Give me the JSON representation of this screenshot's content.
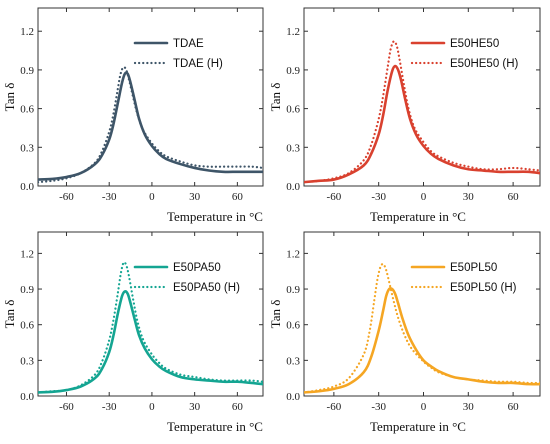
{
  "chart_data": [
    {
      "type": "line",
      "xlabel": "Temperature in °C",
      "ylabel": "Tan δ",
      "xlim": [
        -80,
        78
      ],
      "ylim": [
        0,
        1.38
      ],
      "xticks": [
        -60,
        -30,
        0,
        30,
        60
      ],
      "yticks": [
        0.0,
        0.3,
        0.6,
        0.9,
        1.2
      ],
      "xtick_labels": [
        "-60",
        "-30",
        "0",
        "30",
        "60"
      ],
      "ytick_labels": [
        "0.0",
        "0.3",
        "0.6",
        "0.9",
        "1.2"
      ],
      "legend_position": "top-right",
      "color": "#3e5568",
      "series": [
        {
          "name": "TDAE",
          "style": "solid",
          "x": [
            -80,
            -70,
            -60,
            -50,
            -40,
            -35,
            -30,
            -27,
            -24,
            -21,
            -19,
            -17,
            -15,
            -12,
            -9,
            -5,
            0,
            5,
            10,
            20,
            30,
            40,
            50,
            60,
            70,
            78
          ],
          "y": [
            0.05,
            0.055,
            0.07,
            0.1,
            0.17,
            0.24,
            0.36,
            0.48,
            0.64,
            0.8,
            0.87,
            0.87,
            0.8,
            0.66,
            0.52,
            0.4,
            0.31,
            0.25,
            0.21,
            0.17,
            0.14,
            0.12,
            0.11,
            0.11,
            0.11,
            0.11
          ]
        },
        {
          "name": "TDAE (H)",
          "style": "dotted",
          "x": [
            -80,
            -70,
            -60,
            -50,
            -40,
            -35,
            -30,
            -27,
            -24,
            -22,
            -20,
            -18,
            -16,
            -13,
            -10,
            -6,
            0,
            5,
            10,
            20,
            30,
            40,
            50,
            60,
            70,
            78
          ],
          "y": [
            0.03,
            0.04,
            0.06,
            0.1,
            0.18,
            0.27,
            0.42,
            0.56,
            0.75,
            0.87,
            0.92,
            0.9,
            0.82,
            0.68,
            0.55,
            0.43,
            0.33,
            0.27,
            0.23,
            0.19,
            0.16,
            0.15,
            0.15,
            0.15,
            0.15,
            0.14
          ]
        }
      ]
    },
    {
      "type": "line",
      "xlabel": "Temperature in °C",
      "ylabel": "Tan δ",
      "xlim": [
        -80,
        78
      ],
      "ylim": [
        0,
        1.38
      ],
      "xticks": [
        -60,
        -30,
        0,
        30,
        60
      ],
      "yticks": [
        0.0,
        0.3,
        0.6,
        0.9,
        1.2
      ],
      "xtick_labels": [
        "-60",
        "-30",
        "0",
        "30",
        "60"
      ],
      "ytick_labels": [
        "0.0",
        "0.3",
        "0.6",
        "0.9",
        "1.2"
      ],
      "legend_position": "top-right",
      "color": "#d9412f",
      "series": [
        {
          "name": "E50HE50",
          "style": "solid",
          "x": [
            -80,
            -70,
            -60,
            -50,
            -40,
            -35,
            -30,
            -27,
            -24,
            -21,
            -19,
            -17,
            -15,
            -12,
            -9,
            -5,
            0,
            5,
            10,
            20,
            30,
            40,
            50,
            60,
            70,
            78
          ],
          "y": [
            0.03,
            0.04,
            0.05,
            0.09,
            0.16,
            0.25,
            0.4,
            0.55,
            0.74,
            0.89,
            0.93,
            0.9,
            0.82,
            0.66,
            0.52,
            0.4,
            0.31,
            0.25,
            0.21,
            0.16,
            0.13,
            0.12,
            0.11,
            0.11,
            0.11,
            0.1
          ]
        },
        {
          "name": "E50HE50 (H)",
          "style": "dotted",
          "x": [
            -80,
            -70,
            -60,
            -50,
            -40,
            -35,
            -30,
            -27,
            -24,
            -22,
            -20,
            -18,
            -16,
            -13,
            -10,
            -6,
            0,
            5,
            10,
            20,
            30,
            40,
            50,
            60,
            70,
            78
          ],
          "y": [
            0.03,
            0.04,
            0.06,
            0.1,
            0.2,
            0.32,
            0.52,
            0.7,
            0.92,
            1.06,
            1.12,
            1.09,
            0.98,
            0.78,
            0.6,
            0.45,
            0.34,
            0.27,
            0.23,
            0.18,
            0.15,
            0.13,
            0.13,
            0.14,
            0.13,
            0.12
          ]
        }
      ]
    },
    {
      "type": "line",
      "xlabel": "Temperature in °C",
      "ylabel": "Tan δ",
      "xlim": [
        -80,
        78
      ],
      "ylim": [
        0,
        1.38
      ],
      "xticks": [
        -60,
        -30,
        0,
        30,
        60
      ],
      "yticks": [
        0.0,
        0.3,
        0.6,
        0.9,
        1.2
      ],
      "xtick_labels": [
        "-60",
        "-30",
        "0",
        "30",
        "60"
      ],
      "ytick_labels": [
        "0.0",
        "0.3",
        "0.6",
        "0.9",
        "1.2"
      ],
      "legend_position": "top-right",
      "color": "#14a592",
      "series": [
        {
          "name": "E50PA50",
          "style": "solid",
          "x": [
            -80,
            -70,
            -60,
            -50,
            -40,
            -35,
            -30,
            -27,
            -24,
            -21,
            -19,
            -17,
            -15,
            -12,
            -9,
            -5,
            0,
            5,
            10,
            20,
            30,
            40,
            50,
            60,
            70,
            78
          ],
          "y": [
            0.03,
            0.035,
            0.05,
            0.08,
            0.15,
            0.23,
            0.37,
            0.51,
            0.69,
            0.84,
            0.88,
            0.86,
            0.78,
            0.64,
            0.51,
            0.4,
            0.31,
            0.25,
            0.21,
            0.16,
            0.14,
            0.13,
            0.12,
            0.12,
            0.11,
            0.1
          ]
        },
        {
          "name": "E50PA50 (H)",
          "style": "dotted",
          "x": [
            -80,
            -70,
            -60,
            -50,
            -40,
            -35,
            -30,
            -27,
            -24,
            -22,
            -20,
            -18,
            -16,
            -13,
            -10,
            -6,
            0,
            5,
            10,
            20,
            30,
            40,
            50,
            60,
            70,
            78
          ],
          "y": [
            0.03,
            0.04,
            0.05,
            0.09,
            0.18,
            0.29,
            0.47,
            0.64,
            0.86,
            1.02,
            1.12,
            1.1,
            1.0,
            0.8,
            0.62,
            0.47,
            0.35,
            0.28,
            0.23,
            0.18,
            0.16,
            0.14,
            0.13,
            0.13,
            0.13,
            0.12
          ]
        }
      ]
    },
    {
      "type": "line",
      "xlabel": "Temperature in °C",
      "ylabel": "Tan δ",
      "xlim": [
        -80,
        78
      ],
      "ylim": [
        0,
        1.38
      ],
      "xticks": [
        -60,
        -30,
        0,
        30,
        60
      ],
      "yticks": [
        0.0,
        0.3,
        0.6,
        0.9,
        1.2
      ],
      "xtick_labels": [
        "-60",
        "-30",
        "0",
        "30",
        "60"
      ],
      "ytick_labels": [
        "0.0",
        "0.3",
        "0.6",
        "0.9",
        "1.2"
      ],
      "legend_position": "top-right",
      "color": "#f5a623",
      "series": [
        {
          "name": "E50PL50",
          "style": "solid",
          "x": [
            -80,
            -70,
            -60,
            -50,
            -40,
            -35,
            -30,
            -27,
            -25,
            -23,
            -21,
            -19,
            -17,
            -14,
            -10,
            -5,
            0,
            5,
            10,
            20,
            30,
            40,
            50,
            60,
            70,
            78
          ],
          "y": [
            0.03,
            0.04,
            0.06,
            0.1,
            0.2,
            0.33,
            0.55,
            0.72,
            0.84,
            0.9,
            0.9,
            0.86,
            0.78,
            0.65,
            0.51,
            0.39,
            0.3,
            0.25,
            0.21,
            0.16,
            0.14,
            0.12,
            0.11,
            0.11,
            0.1,
            0.1
          ]
        },
        {
          "name": "E50PL50 (H)",
          "style": "dotted",
          "x": [
            -80,
            -70,
            -60,
            -50,
            -40,
            -36,
            -33,
            -31,
            -29,
            -27,
            -25,
            -23,
            -20,
            -17,
            -13,
            -8,
            0,
            5,
            10,
            20,
            30,
            40,
            50,
            60,
            70,
            78
          ],
          "y": [
            0.03,
            0.05,
            0.08,
            0.15,
            0.35,
            0.55,
            0.8,
            0.97,
            1.08,
            1.11,
            1.06,
            0.96,
            0.8,
            0.66,
            0.52,
            0.4,
            0.29,
            0.24,
            0.2,
            0.16,
            0.14,
            0.13,
            0.12,
            0.12,
            0.11,
            0.11
          ]
        }
      ]
    }
  ]
}
